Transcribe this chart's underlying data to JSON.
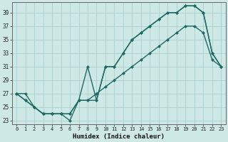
{
  "xlabel": "Humidex (Indice chaleur)",
  "ylabel": "",
  "bg_color": "#cde8e5",
  "grid_color": "#a8cfcc",
  "line_color": "#1e6b63",
  "xlim": [
    -0.5,
    23.5
  ],
  "ylim": [
    22.5,
    40.5
  ],
  "xticks": [
    0,
    1,
    2,
    3,
    4,
    5,
    6,
    7,
    8,
    9,
    10,
    11,
    12,
    13,
    14,
    15,
    16,
    17,
    18,
    19,
    20,
    21,
    22,
    23
  ],
  "yticks": [
    23,
    25,
    27,
    29,
    31,
    33,
    35,
    37,
    39
  ],
  "line1_x": [
    0,
    1,
    2,
    3,
    4,
    5,
    6,
    7,
    8,
    9,
    10,
    11,
    12,
    13,
    14,
    15,
    16,
    17,
    18,
    19,
    20,
    21,
    22,
    23
  ],
  "line1_y": [
    27,
    26,
    25,
    24,
    24,
    24,
    24,
    26,
    31,
    26,
    31,
    31,
    33,
    35,
    36,
    37,
    38,
    39,
    39,
    40,
    40,
    39,
    33,
    31
  ],
  "line2_x": [
    0,
    1,
    2,
    3,
    4,
    5,
    6,
    7,
    8,
    9,
    10,
    11,
    12,
    13,
    14,
    15,
    16,
    17,
    18,
    19,
    20,
    21,
    22,
    23
  ],
  "line2_y": [
    27,
    26,
    25,
    24,
    24,
    24,
    24,
    26,
    26,
    26,
    31,
    31,
    33,
    35,
    36,
    37,
    38,
    39,
    39,
    40,
    40,
    39,
    33,
    31
  ],
  "line3_x": [
    0,
    1,
    2,
    3,
    4,
    5,
    6,
    7,
    8,
    9,
    10,
    11,
    12,
    13,
    14,
    15,
    16,
    17,
    18,
    19,
    20,
    21,
    22,
    23
  ],
  "line3_y": [
    27,
    27,
    25,
    24,
    24,
    24,
    23,
    26,
    26,
    27,
    28,
    29,
    30,
    31,
    32,
    33,
    34,
    35,
    36,
    37,
    37,
    36,
    32,
    31
  ]
}
